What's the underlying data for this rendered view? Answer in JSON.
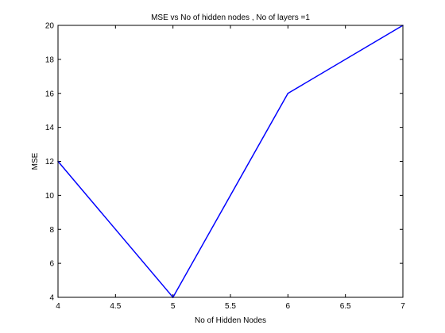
{
  "chart_data": {
    "type": "line",
    "title": "MSE vs No of hidden nodes , No of layers =1",
    "xlabel": "No of Hidden Nodes",
    "ylabel": "MSE",
    "xlim": [
      4,
      7
    ],
    "ylim": [
      4,
      20
    ],
    "xticks": [
      "4",
      "4.5",
      "5",
      "5.5",
      "6",
      "6.5",
      "7"
    ],
    "yticks": [
      "4",
      "6",
      "8",
      "10",
      "12",
      "14",
      "16",
      "18",
      "20"
    ],
    "grid": false,
    "legend": "none",
    "line_color": "#0000ff",
    "series": [
      {
        "x": [
          4,
          5,
          6,
          7
        ],
        "y": [
          12,
          4,
          16,
          20
        ]
      }
    ]
  }
}
